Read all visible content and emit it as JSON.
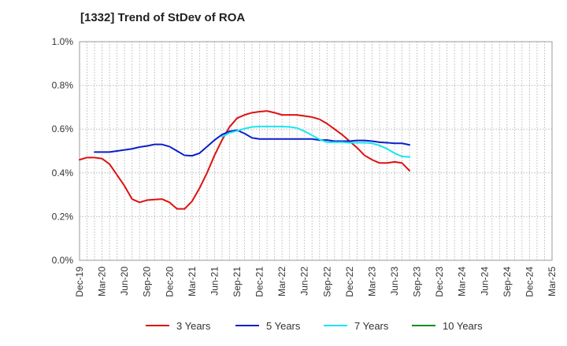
{
  "title": "[1332]  Trend of StDev of ROA",
  "chart_data": {
    "type": "line",
    "title": "[1332]  Trend of StDev of ROA",
    "xlabel": "",
    "ylabel": "",
    "ylim": [
      0,
      1.0
    ],
    "y_ticks": [
      "0.0%",
      "0.2%",
      "0.4%",
      "0.6%",
      "0.8%",
      "1.0%"
    ],
    "x_ticks": [
      "Dec-19",
      "Mar-20",
      "Jun-20",
      "Sep-20",
      "Dec-20",
      "Mar-21",
      "Jun-21",
      "Sep-21",
      "Dec-21",
      "Mar-22",
      "Jun-22",
      "Sep-22",
      "Dec-22",
      "Mar-23",
      "Jun-23",
      "Sep-23",
      "Dec-23",
      "Mar-24",
      "Jun-24",
      "Sep-24",
      "Dec-24",
      "Mar-25"
    ],
    "grid": true,
    "legend_position": "bottom",
    "series": [
      {
        "name": "3 Years",
        "color": "#dd1111",
        "values": [
          0.46,
          0.47,
          0.47,
          0.465,
          0.44,
          0.39,
          0.34,
          0.28,
          0.265,
          0.275,
          0.278,
          0.28,
          0.265,
          0.235,
          0.235,
          0.27,
          0.33,
          0.4,
          0.48,
          0.55,
          0.61,
          0.65,
          0.665,
          0.675,
          0.68,
          0.683,
          0.675,
          0.665,
          0.665,
          0.665,
          0.66,
          0.655,
          0.645,
          0.625,
          0.6,
          0.575,
          0.545,
          0.515,
          0.48,
          0.46,
          0.445,
          0.445,
          0.45,
          0.445,
          0.41
        ]
      },
      {
        "name": "5 Years",
        "color": "#0a1ec8",
        "values": [
          null,
          null,
          0.495,
          0.495,
          0.495,
          0.5,
          0.505,
          0.51,
          0.518,
          0.523,
          0.53,
          0.53,
          0.52,
          0.5,
          0.48,
          0.478,
          0.49,
          0.52,
          0.55,
          0.575,
          0.59,
          0.595,
          0.58,
          0.56,
          0.555,
          0.555,
          0.555,
          0.555,
          0.555,
          0.555,
          0.555,
          0.555,
          0.55,
          0.55,
          0.545,
          0.545,
          0.545,
          0.548,
          0.548,
          0.545,
          0.54,
          0.538,
          0.535,
          0.535,
          0.528
        ]
      },
      {
        "name": "7 Years",
        "color": "#19e6f0",
        "values": [
          null,
          null,
          null,
          null,
          null,
          null,
          null,
          null,
          null,
          null,
          null,
          null,
          null,
          null,
          null,
          null,
          null,
          null,
          null,
          0.565,
          0.583,
          0.592,
          0.602,
          0.61,
          0.612,
          0.612,
          0.612,
          0.612,
          0.61,
          0.605,
          0.59,
          0.572,
          0.553,
          0.54,
          0.54,
          0.54,
          0.538,
          0.538,
          0.538,
          0.535,
          0.525,
          0.51,
          0.49,
          0.475,
          0.473
        ]
      },
      {
        "name": "10 Years",
        "color": "#1a8c1a",
        "values": []
      }
    ]
  }
}
